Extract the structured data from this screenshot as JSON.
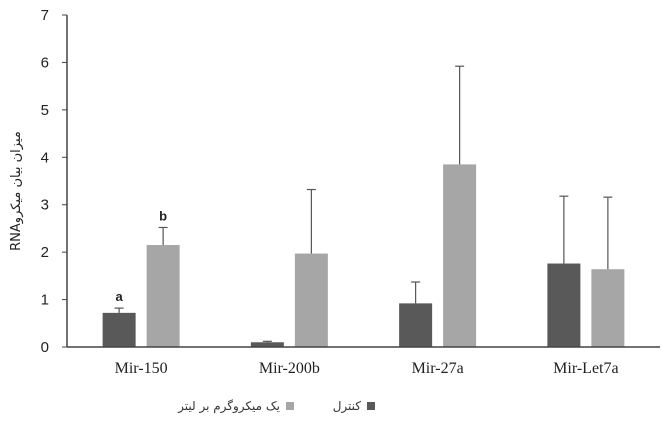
{
  "chart_data": {
    "type": "bar",
    "title": "",
    "xlabel": "",
    "ylabel": "RNAمیزان بیان میکرو",
    "ylim": [
      0,
      7
    ],
    "yticks": [
      0,
      1,
      2,
      3,
      4,
      5,
      6,
      7
    ],
    "grid": false,
    "legend_position": "bottom",
    "categories": [
      "Mir-150",
      "Mir-200b",
      "Mir-27a",
      "Mir-Let7a"
    ],
    "series": [
      {
        "name": "کنترل",
        "color": "#595959",
        "values": [
          0.72,
          0.1,
          0.92,
          1.76
        ],
        "error_upper": [
          0.82,
          0.12,
          1.37,
          3.18
        ],
        "labels": [
          "a",
          "",
          "",
          ""
        ]
      },
      {
        "name": "یک میکروگرم بر لیتر",
        "color": "#a6a6a6",
        "values": [
          2.15,
          1.97,
          3.85,
          1.64
        ],
        "error_upper": [
          2.52,
          3.32,
          5.92,
          3.16
        ],
        "labels": [
          "b",
          "",
          "",
          ""
        ]
      }
    ]
  }
}
